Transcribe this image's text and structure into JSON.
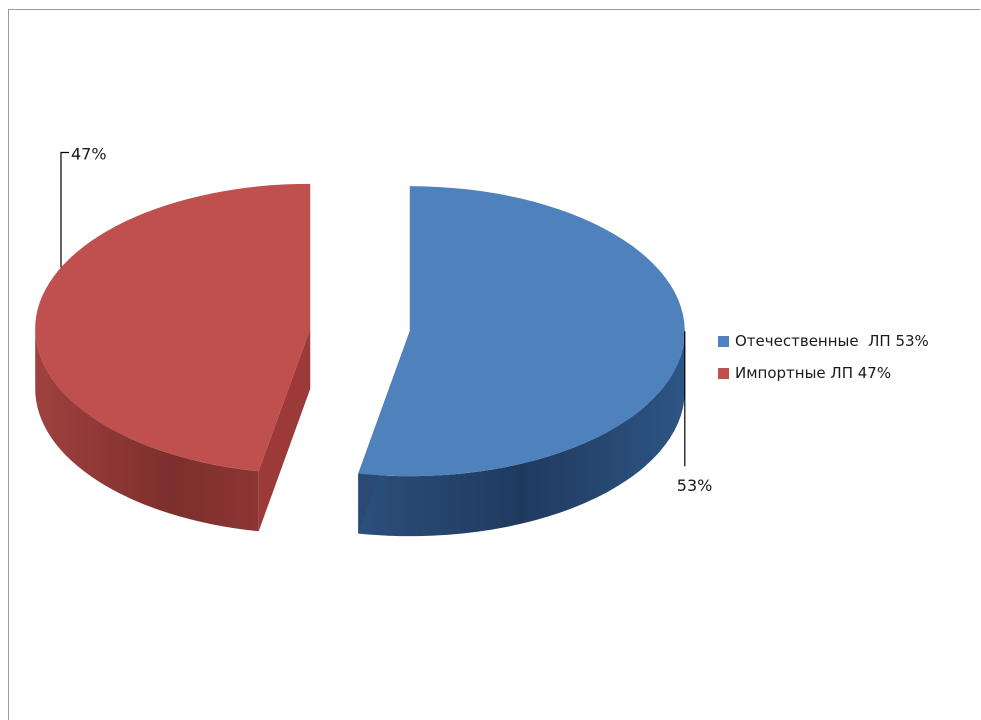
{
  "chart_data": {
    "type": "pie",
    "title": "",
    "three_d": true,
    "exploded": true,
    "legend_position": "right",
    "slices": [
      {
        "label": "Отечественные  ЛП 53%",
        "value": 53,
        "data_label": "53%",
        "color": "#4f81bd"
      },
      {
        "label": "Импортные ЛП 47%",
        "value": 47,
        "data_label": "47%",
        "color": "#c0504d"
      }
    ]
  }
}
